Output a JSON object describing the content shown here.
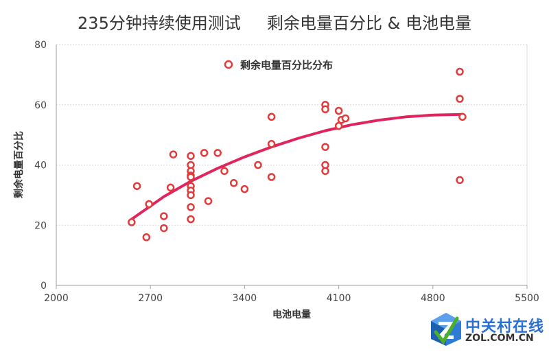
{
  "chart_data": {
    "type": "scatter",
    "title": "235分钟持续使用测试     剩余电量百分比 & 电池电量",
    "xlabel": "电池电量",
    "ylabel": "剩余电量百分比",
    "xlim": [
      2000,
      5500
    ],
    "ylim": [
      0,
      80
    ],
    "x_ticks": [
      "2000",
      "2700",
      "3400",
      "4100",
      "4800",
      "5500"
    ],
    "y_ticks": [
      "0",
      "20",
      "40",
      "60",
      "80"
    ],
    "grid": true,
    "legend_position": "top-center",
    "series": [
      {
        "name": "剩余电量百分比分布",
        "color": "#e23b3b",
        "points": [
          [
            2560,
            21
          ],
          [
            2600,
            33
          ],
          [
            2670,
            16
          ],
          [
            2690,
            27
          ],
          [
            2800,
            23
          ],
          [
            2800,
            19
          ],
          [
            2850,
            32.5
          ],
          [
            2870,
            43.5
          ],
          [
            3000,
            43
          ],
          [
            3000,
            40
          ],
          [
            3000,
            38
          ],
          [
            3000,
            36.5
          ],
          [
            3000,
            36
          ],
          [
            3000,
            33
          ],
          [
            3000,
            31.5
          ],
          [
            3000,
            30
          ],
          [
            3000,
            26
          ],
          [
            3000,
            22
          ],
          [
            3100,
            44
          ],
          [
            3130,
            28
          ],
          [
            3200,
            44
          ],
          [
            3250,
            38
          ],
          [
            3320,
            34
          ],
          [
            3400,
            32
          ],
          [
            3500,
            40
          ],
          [
            3600,
            56
          ],
          [
            3600,
            47
          ],
          [
            3600,
            36
          ],
          [
            4000,
            60
          ],
          [
            4000,
            58.5
          ],
          [
            4000,
            46
          ],
          [
            4000,
            40
          ],
          [
            4000,
            38
          ],
          [
            4100,
            58
          ],
          [
            4100,
            53
          ],
          [
            4120,
            55
          ],
          [
            4150,
            55.5
          ],
          [
            5000,
            71
          ],
          [
            5000,
            62
          ],
          [
            5000,
            35
          ],
          [
            5020,
            56
          ]
        ]
      }
    ],
    "trendline": {
      "type": "polynomial",
      "color": "#e0245e",
      "x": [
        2560,
        2800,
        3000,
        3200,
        3400,
        3600,
        3800,
        4000,
        4200,
        4400,
        4600,
        4800,
        5020
      ],
      "y": [
        22,
        29.5,
        34.6,
        38.9,
        42.7,
        46,
        48.9,
        51.4,
        53.4,
        54.9,
        56,
        56.6,
        56.8
      ]
    }
  },
  "watermark": {
    "cn": "中关村在线",
    "en": "ZOL.COM.CN"
  }
}
